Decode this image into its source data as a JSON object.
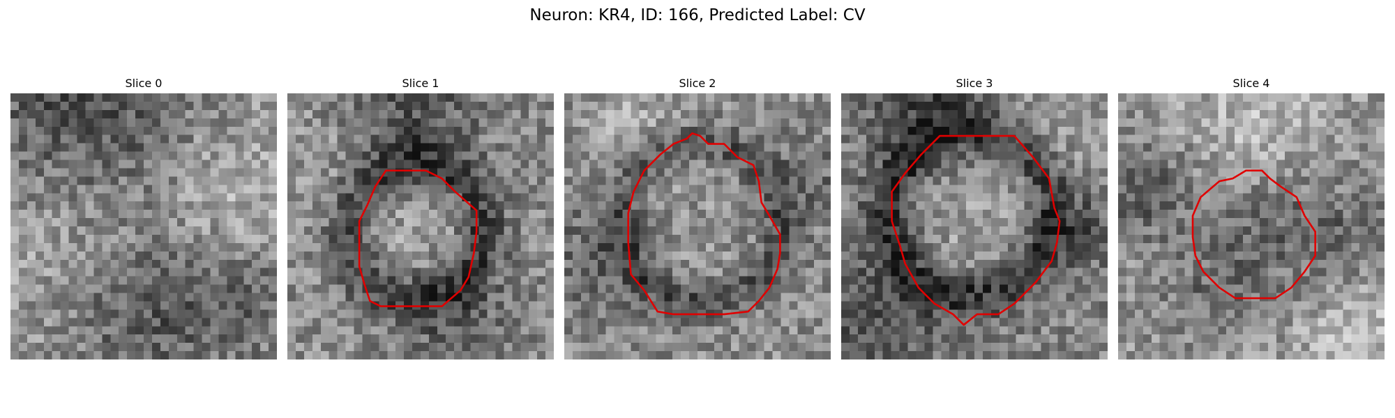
{
  "figure": {
    "title": "Neuron: KR4, ID: 166, Predicted Label: CV",
    "contour_color": "#e00000",
    "colormap": "gray"
  },
  "panels": [
    {
      "title": "Slice 0",
      "has_contour": false
    },
    {
      "title": "Slice 1",
      "has_contour": true
    },
    {
      "title": "Slice 2",
      "has_contour": true
    },
    {
      "title": "Slice 3",
      "has_contour": true
    },
    {
      "title": "Slice 4",
      "has_contour": true
    }
  ]
}
